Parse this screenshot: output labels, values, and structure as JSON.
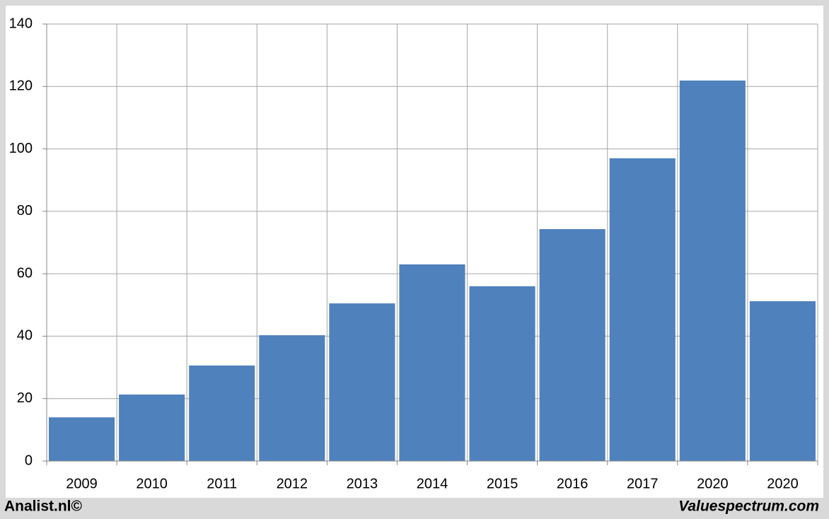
{
  "chart_data": {
    "type": "bar",
    "categories": [
      "2009",
      "2010",
      "2011",
      "2012",
      "2013",
      "2014",
      "2015",
      "2016",
      "2017",
      "2020",
      "2020"
    ],
    "values": [
      14.0,
      21.3,
      30.6,
      40.3,
      50.5,
      63.0,
      56.0,
      74.3,
      97.0,
      121.9,
      51.2
    ],
    "color": "#4f81bd",
    "ylim": [
      0,
      140
    ],
    "yticks": [
      0,
      20,
      40,
      60,
      80,
      100,
      120,
      140
    ],
    "grid": true,
    "source": "Analist.nl©",
    "credit": "Valuespectrum.com"
  }
}
